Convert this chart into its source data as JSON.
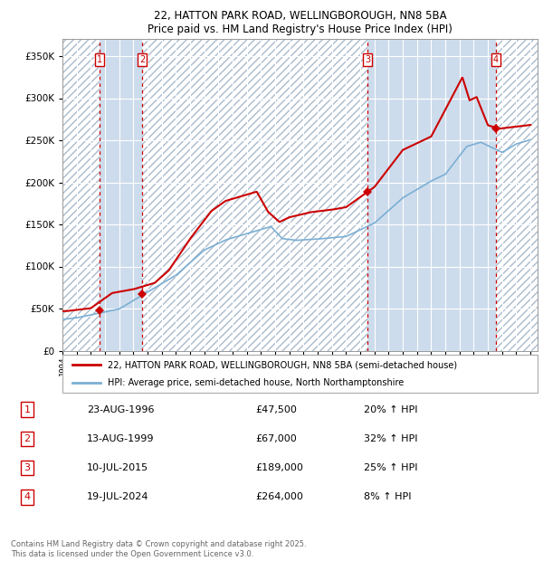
{
  "title1": "22, HATTON PARK ROAD, WELLINGBOROUGH, NN8 5BA",
  "title2": "Price paid vs. HM Land Registry's House Price Index (HPI)",
  "ylim": [
    0,
    370000
  ],
  "xlim_start": 1994.0,
  "xlim_end": 2027.5,
  "yticks": [
    0,
    50000,
    100000,
    150000,
    200000,
    250000,
    300000,
    350000
  ],
  "ytick_labels": [
    "£0",
    "£50K",
    "£100K",
    "£150K",
    "£200K",
    "£250K",
    "£300K",
    "£350K"
  ],
  "xtick_years": [
    1994,
    1995,
    1996,
    1997,
    1998,
    1999,
    2000,
    2001,
    2002,
    2003,
    2004,
    2005,
    2006,
    2007,
    2008,
    2009,
    2010,
    2011,
    2012,
    2013,
    2014,
    2015,
    2016,
    2017,
    2018,
    2019,
    2020,
    2021,
    2022,
    2023,
    2024,
    2025,
    2026,
    2027
  ],
  "background_color": "#ffffff",
  "plot_bg_color": "#dde8f0",
  "hatch_bg_color": "#c8d8e8",
  "grid_color": "#ffffff",
  "hpi_line_color": "#7bafd4",
  "price_line_color": "#cc0000",
  "sale_marker_color": "#cc0000",
  "dashed_line_color": "#cc0000",
  "owned_shade_color": "#cddcec",
  "transactions": [
    {
      "num": 1,
      "date_x": 1996.64,
      "price": 47500,
      "label": "1"
    },
    {
      "num": 2,
      "date_x": 1999.62,
      "price": 67000,
      "label": "2"
    },
    {
      "num": 3,
      "date_x": 2015.52,
      "price": 189000,
      "label": "3"
    },
    {
      "num": 4,
      "date_x": 2024.54,
      "price": 264000,
      "label": "4"
    }
  ],
  "legend_house_label": "22, HATTON PARK ROAD, WELLINGBOROUGH, NN8 5BA (semi-detached house)",
  "legend_hpi_label": "HPI: Average price, semi-detached house, North Northamptonshire",
  "table_rows": [
    {
      "num": "1",
      "date": "23-AUG-1996",
      "price": "£47,500",
      "pct": "20% ↑ HPI"
    },
    {
      "num": "2",
      "date": "13-AUG-1999",
      "price": "£67,000",
      "pct": "32% ↑ HPI"
    },
    {
      "num": "3",
      "date": "10-JUL-2015",
      "price": "£189,000",
      "pct": "25% ↑ HPI"
    },
    {
      "num": "4",
      "date": "19-JUL-2024",
      "price": "£264,000",
      "pct": "8% ↑ HPI"
    }
  ],
  "footnote": "Contains HM Land Registry data © Crown copyright and database right 2025.\nThis data is licensed under the Open Government Licence v3.0.",
  "shade_region_1_start": 1996.64,
  "shade_region_1_end": 1999.62,
  "shade_region_2_start": 2015.52,
  "shade_region_2_end": 2024.54
}
